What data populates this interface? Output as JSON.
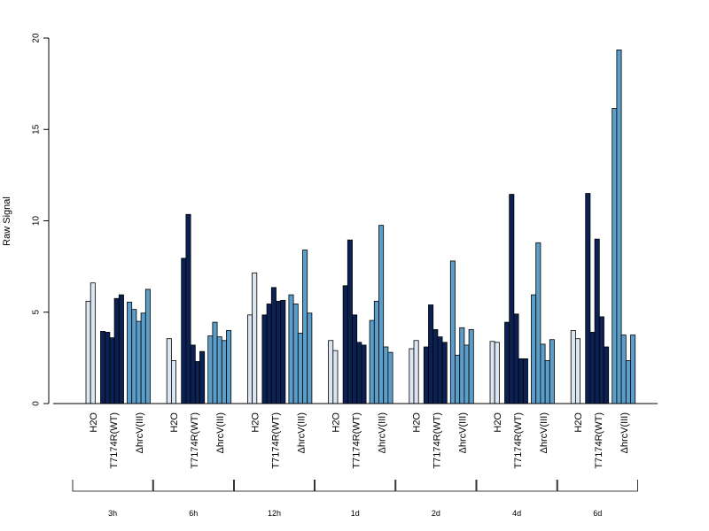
{
  "chart_data": {
    "type": "bar",
    "ylabel": "Raw Signal",
    "ylim": [
      0,
      20
    ],
    "yticks": [
      0,
      5,
      10,
      15,
      20
    ],
    "conditions": [
      "H2O",
      "T7174R(WT)",
      "ΔhrcV(III)"
    ],
    "timepoints": [
      "3h",
      "6h",
      "12h",
      "1d",
      "2d",
      "4d",
      "6d"
    ],
    "colors": {
      "H2O": "#dbe6f2",
      "T7174R(WT)": "#0b2154",
      "ΔhrcV(III)": "#5b9ec9"
    },
    "groups": [
      {
        "time": "3h",
        "H2O": [
          5.6,
          6.6
        ],
        "T7174R(WT)": [
          3.95,
          3.9,
          3.6,
          5.75,
          5.95
        ],
        "ΔhrcV(III)": [
          5.55,
          5.15,
          4.5,
          4.95,
          6.25
        ]
      },
      {
        "time": "6h",
        "H2O": [
          3.55,
          2.35
        ],
        "T7174R(WT)": [
          7.95,
          10.35,
          3.2,
          2.3,
          2.85
        ],
        "ΔhrcV(III)": [
          3.7,
          4.45,
          3.65,
          3.45,
          4.0
        ]
      },
      {
        "time": "12h",
        "H2O": [
          4.85,
          7.15
        ],
        "T7174R(WT)": [
          4.85,
          5.45,
          6.35,
          5.6,
          5.65
        ],
        "ΔhrcV(III)": [
          5.95,
          5.45,
          3.85,
          8.4,
          4.95
        ]
      },
      {
        "time": "1d",
        "H2O": [
          3.45,
          2.9
        ],
        "T7174R(WT)": [
          6.45,
          8.95,
          4.85,
          3.35,
          3.2
        ],
        "ΔhrcV(III)": [
          4.55,
          5.6,
          9.75,
          3.1,
          2.8
        ]
      },
      {
        "time": "2d",
        "H2O": [
          3.0,
          3.45
        ],
        "T7174R(WT)": [
          3.1,
          5.4,
          4.05,
          3.65,
          3.35
        ],
        "ΔhrcV(III)": [
          7.8,
          2.65,
          4.15,
          3.2,
          4.05
        ]
      },
      {
        "time": "4d",
        "H2O": [
          3.4,
          3.35
        ],
        "T7174R(WT)": [
          4.45,
          11.45,
          4.9,
          2.45,
          2.45
        ],
        "ΔhrcV(III)": [
          5.95,
          8.8,
          3.25,
          2.35,
          3.5
        ]
      },
      {
        "time": "6d",
        "H2O": [
          4.0,
          3.55
        ],
        "T7174R(WT)": [
          11.5,
          3.9,
          9.0,
          4.75,
          3.1
        ],
        "ΔhrcV(III)": [
          16.15,
          19.35,
          3.75,
          2.35,
          3.75
        ]
      }
    ]
  }
}
